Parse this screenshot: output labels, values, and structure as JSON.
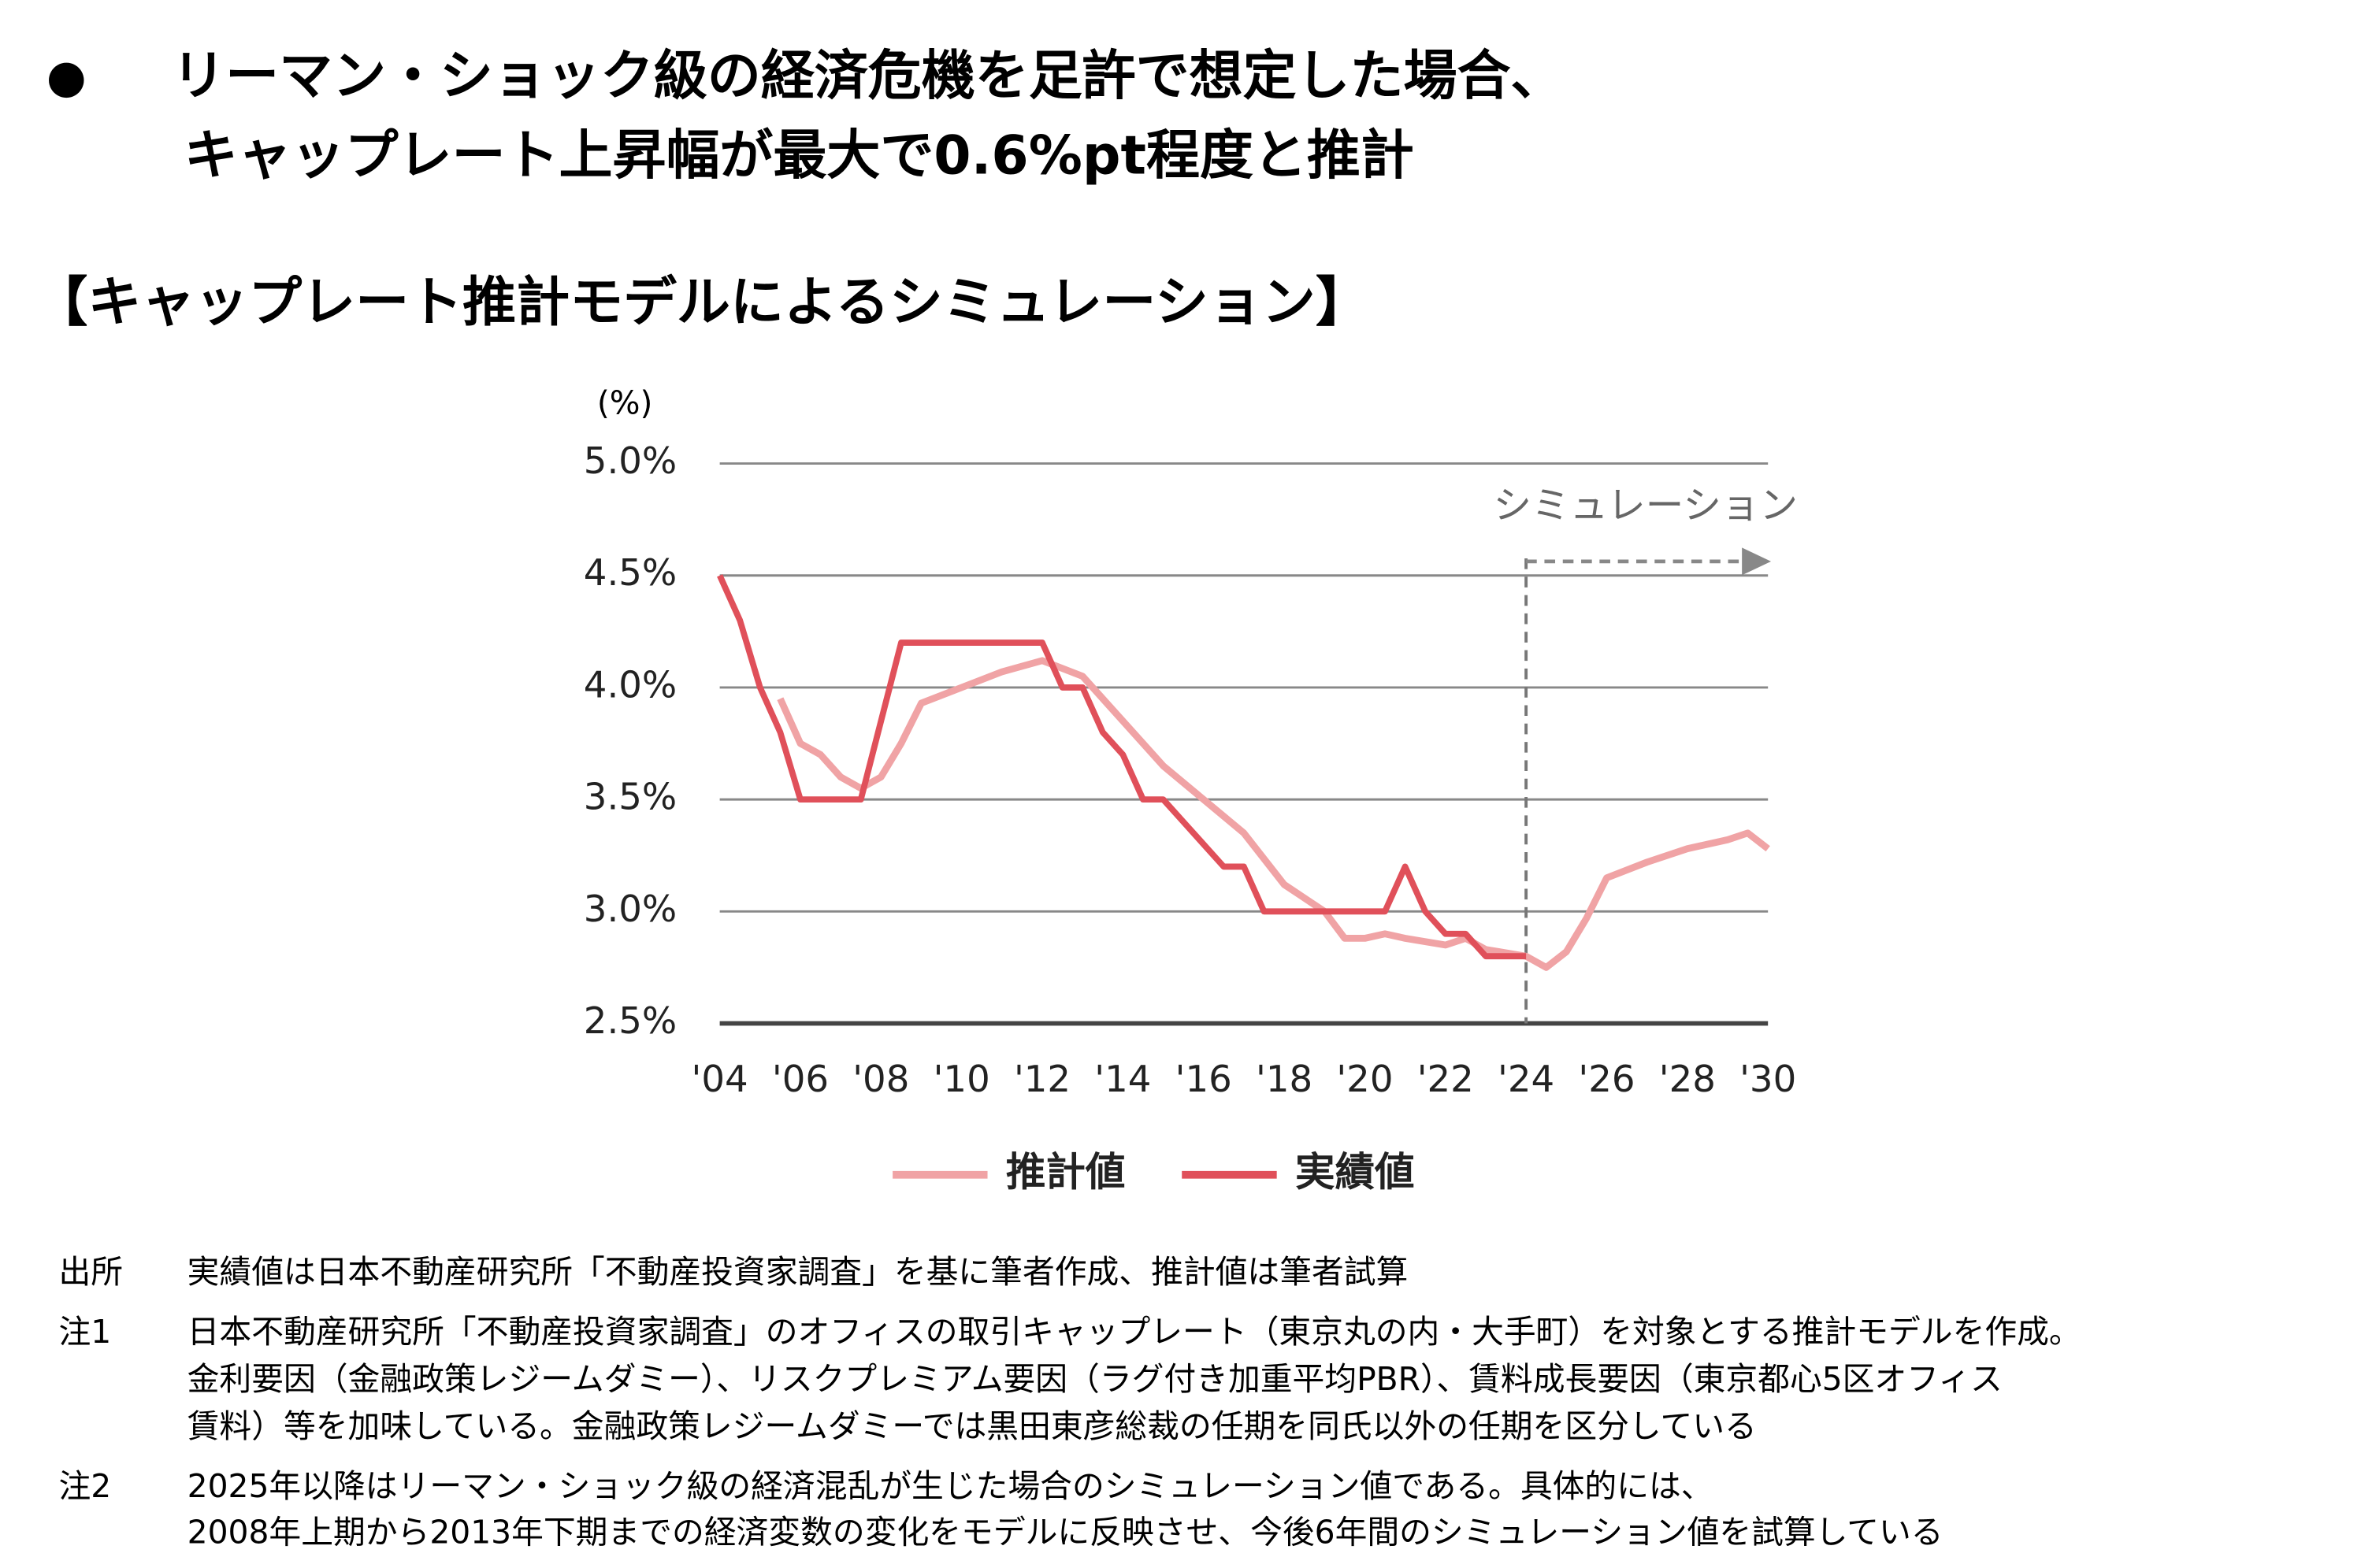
{
  "header": {
    "bullet": "●",
    "lines": [
      "リーマン・ショック級の経済危機を足許で想定した場合、",
      "キャップレート上昇幅が最大で0.6%pt程度と推計"
    ]
  },
  "section_title": "【キャップレート推計モデルによるシミュレーション】",
  "chart_data": {
    "type": "line",
    "y_unit": "(%)",
    "annotation": {
      "text": "シミュレーション",
      "x": 2024
    },
    "xlim": [
      2004,
      2030
    ],
    "ylim": [
      2.5,
      5.0
    ],
    "xticks": [
      {
        "value": 2004,
        "label": "'04"
      },
      {
        "value": 2006,
        "label": "'06"
      },
      {
        "value": 2008,
        "label": "'08"
      },
      {
        "value": 2010,
        "label": "'10"
      },
      {
        "value": 2012,
        "label": "'12"
      },
      {
        "value": 2014,
        "label": "'14"
      },
      {
        "value": 2016,
        "label": "'16"
      },
      {
        "value": 2018,
        "label": "'18"
      },
      {
        "value": 2020,
        "label": "'20"
      },
      {
        "value": 2022,
        "label": "'22"
      },
      {
        "value": 2024,
        "label": "'24"
      },
      {
        "value": 2026,
        "label": "'26"
      },
      {
        "value": 2028,
        "label": "'28"
      },
      {
        "value": 2030,
        "label": "'30"
      }
    ],
    "yticks": [
      {
        "value": 2.5,
        "label": "2.5%"
      },
      {
        "value": 3.0,
        "label": "3.0%"
      },
      {
        "value": 3.5,
        "label": "3.5%"
      },
      {
        "value": 4.0,
        "label": "4.0%"
      },
      {
        "value": 4.5,
        "label": "4.5%"
      },
      {
        "value": 5.0,
        "label": "5.0%"
      }
    ],
    "grid": true,
    "legend": "bottom",
    "series": [
      {
        "name": "推計値",
        "color": "#f0a3a5",
        "x": [
          2005.5,
          2006,
          2006.5,
          2007,
          2007.5,
          2008,
          2008.5,
          2009,
          2010,
          2011,
          2012,
          2013,
          2014,
          2015,
          2016,
          2017,
          2018,
          2019,
          2019.5,
          2020,
          2020.5,
          2021,
          2022,
          2022.5,
          2023,
          2024,
          2024.5,
          2025,
          2025.5,
          2026,
          2027,
          2028,
          2029,
          2029.5,
          2030
        ],
        "values": [
          3.95,
          3.75,
          3.7,
          3.6,
          3.55,
          3.6,
          3.75,
          3.93,
          4.0,
          4.07,
          4.12,
          4.05,
          3.85,
          3.65,
          3.5,
          3.35,
          3.12,
          3.0,
          2.88,
          2.88,
          2.9,
          2.88,
          2.85,
          2.88,
          2.83,
          2.8,
          2.75,
          2.82,
          2.97,
          3.15,
          3.22,
          3.28,
          3.32,
          3.35,
          3.28
        ]
      },
      {
        "name": "実績値",
        "color": "#e0505a",
        "x": [
          2004,
          2004.5,
          2005,
          2005.5,
          2006,
          2007,
          2007.5,
          2008,
          2008.5,
          2009,
          2010,
          2011,
          2012,
          2012.5,
          2013,
          2013.5,
          2014,
          2014.5,
          2015,
          2015.5,
          2016,
          2016.5,
          2017,
          2017.5,
          2018,
          2019,
          2020,
          2020.5,
          2021,
          2021.5,
          2022,
          2022.5,
          2023,
          2024
        ],
        "values": [
          4.5,
          4.3,
          4.0,
          3.8,
          3.5,
          3.5,
          3.5,
          3.85,
          4.2,
          4.2,
          4.2,
          4.2,
          4.2,
          4.0,
          4.0,
          3.8,
          3.7,
          3.5,
          3.5,
          3.4,
          3.3,
          3.2,
          3.2,
          3.0,
          3.0,
          3.0,
          3.0,
          3.0,
          3.2,
          3.0,
          2.9,
          2.9,
          2.8,
          2.8
        ]
      }
    ]
  },
  "notes": [
    {
      "label": "出所",
      "lines": [
        "実績値は日本不動産研究所「不動産投資家調査」を基に筆者作成、推計値は筆者試算"
      ]
    },
    {
      "label": "注1",
      "lines": [
        "日本不動産研究所「不動産投資家調査」のオフィスの取引キャップレート（東京丸の内・大手町）を対象とする推計モデルを作成。",
        "金利要因（金融政策レジームダミー）、リスクプレミアム要因（ラグ付き加重平均PBR）、賃料成長要因（東京都心5区オフィス",
        "賃料）等を加味している。金融政策レジームダミーでは黒田東彦総裁の任期を同氏以外の任期を区分している"
      ]
    },
    {
      "label": "注2",
      "lines": [
        "2025年以降はリーマン・ショック級の経済混乱が生じた場合のシミュレーション値である。具体的には、",
        "2008年上期から2013年下期までの経済変数の変化をモデルに反映させ、今後6年間のシミュレーション値を試算している"
      ]
    }
  ]
}
